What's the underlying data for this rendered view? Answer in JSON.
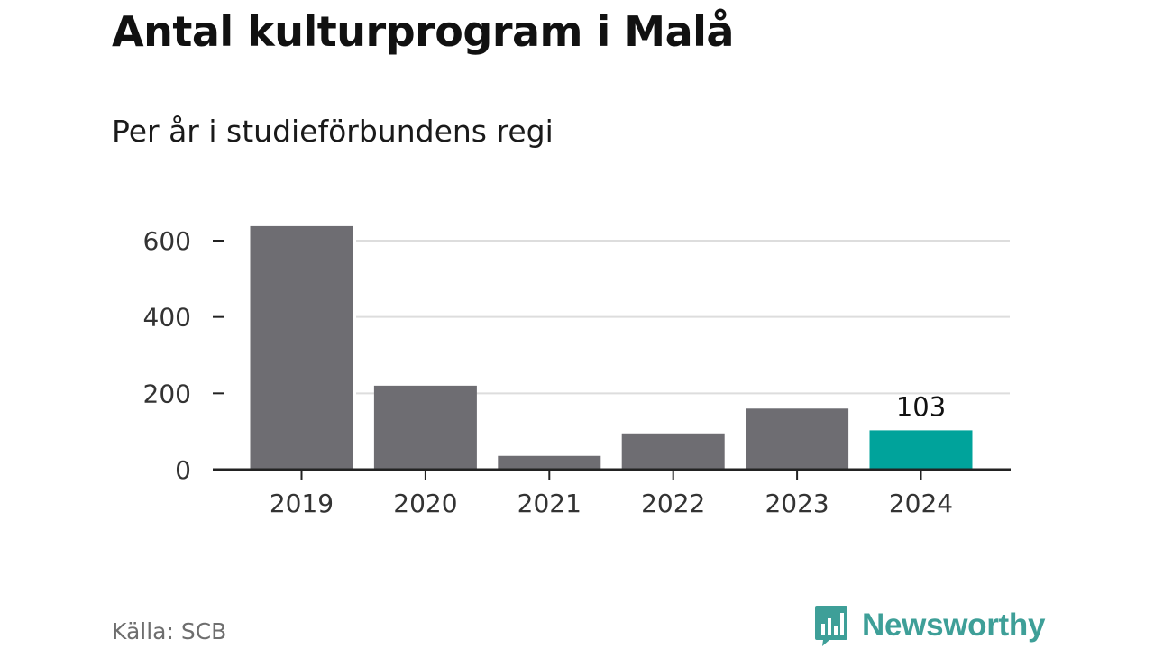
{
  "title": "Antal kulturprogram i Malå",
  "subtitle": "Per år i studieförbundens regi",
  "source": "Källa: SCB",
  "brand": {
    "name": "Newsworthy",
    "icon": "bar-chart-speech-bubble-icon",
    "color": "#3e9f98"
  },
  "colors": {
    "bar": "#6e6d72",
    "highlight": "#00a39b",
    "grid": "#dddddd",
    "axis": "#222222"
  },
  "chart_data": {
    "type": "bar",
    "categories": [
      "2019",
      "2020",
      "2021",
      "2022",
      "2023",
      "2024"
    ],
    "values": [
      638,
      220,
      36,
      95,
      160,
      103
    ],
    "highlight_index": 5,
    "data_labels": [
      {
        "index": 5,
        "text": "103"
      }
    ],
    "yticks": [
      "0",
      "200",
      "400",
      "600"
    ],
    "ytick_values": [
      0,
      200,
      400,
      600
    ],
    "ylim": [
      0,
      640
    ],
    "grid": true,
    "legend": "none",
    "xlabel": "",
    "ylabel": ""
  }
}
